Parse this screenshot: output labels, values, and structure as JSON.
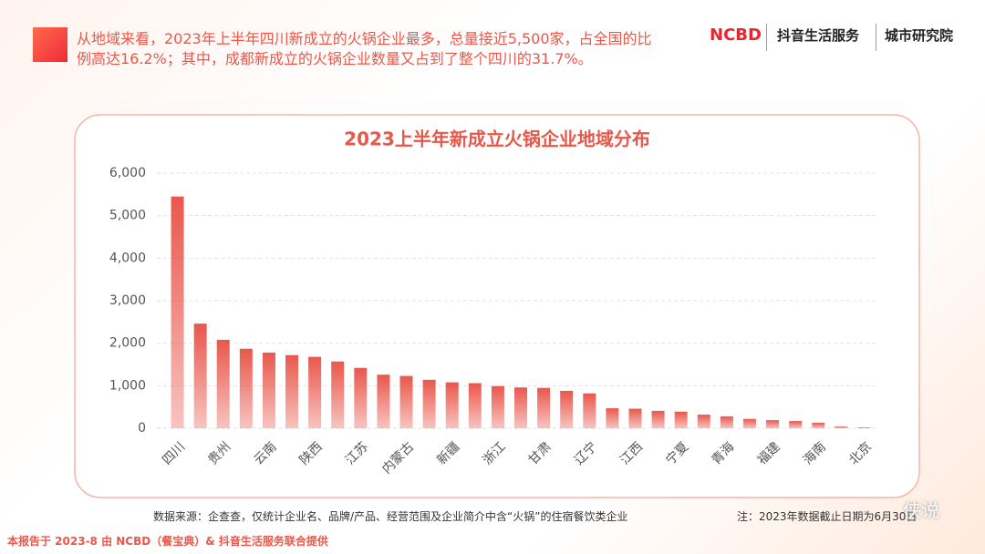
{
  "header": {
    "intro": "从地域来看，2023年上半年四川新成立的火锅企业最多，总量接近5,500家，占全国的比例高达16.2%；其中，成都新成立的火锅企业数量又占到了整个四川的31.7%。",
    "logos": [
      "NCBD",
      "抖音生活服务",
      "城市研究院"
    ]
  },
  "chart_data": {
    "type": "bar",
    "title": "2023上半年新成立火锅企业地域分布",
    "categories": [
      "四川",
      null,
      "贵州",
      null,
      "云南",
      null,
      "陕西",
      null,
      "江苏",
      null,
      "内蒙古",
      null,
      "新疆",
      null,
      "浙江",
      null,
      "甘肃",
      null,
      "辽宁",
      null,
      "江西",
      null,
      "宁夏",
      null,
      "青海",
      null,
      "福建",
      null,
      "海南",
      null,
      "北京"
    ],
    "values": [
      5450,
      2460,
      2080,
      1870,
      1780,
      1720,
      1680,
      1570,
      1420,
      1260,
      1230,
      1140,
      1080,
      1060,
      990,
      960,
      950,
      880,
      820,
      470,
      460,
      410,
      390,
      320,
      280,
      220,
      190,
      170,
      130,
      40,
      20
    ],
    "color": "#e9574c",
    "ylim": [
      0,
      6000
    ],
    "yticks": [
      0,
      {
        "value": 1000,
        "label": "1,000"
      },
      {
        "value": 2000,
        "label": "2,000"
      },
      {
        "value": 3000,
        "label": "3,000"
      },
      {
        "value": 4000,
        "label": "4,000"
      },
      {
        "value": 5000,
        "label": "5,000"
      },
      {
        "value": 6000,
        "label": "6,000"
      }
    ],
    "grid": true
  },
  "footer": {
    "source": "数据来源：企查查，仅统计企业名、品牌/产品、经营范围及企业简介中含“火锅”的住宿餐饮类企业",
    "note": "注：2023年数据截止日期为6月30日",
    "credit": "本报告于 2023-8 由 NCBD（餐宝典）& 抖音生活服务联合提供",
    "watermark": "侠说"
  }
}
